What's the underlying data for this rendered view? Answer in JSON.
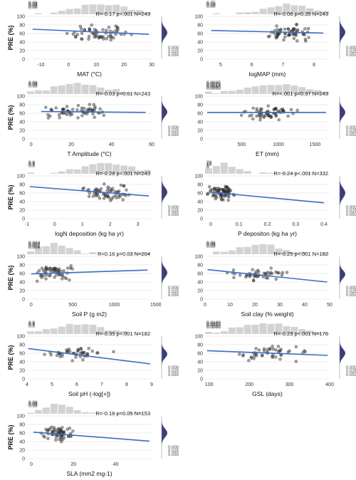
{
  "chart_data": [
    {
      "type": "scatter",
      "xlabel": "MAT (°C)",
      "ylabel": "PRE (%)",
      "xlim": [
        -15,
        30
      ],
      "ylim": [
        0,
        100
      ],
      "xticks": [
        -10,
        0,
        10,
        20,
        30
      ],
      "yticks": [
        0,
        20,
        40,
        60,
        80,
        100
      ],
      "stats": "R=-0.17  p<.001  N=243",
      "fit": {
        "x": [
          -13,
          29
        ],
        "y": [
          70,
          58
        ]
      },
      "hist_x_ticks": [
        "0.08",
        "0.06",
        "0.04",
        "0.02",
        "0.00"
      ],
      "hist_y_ticks": [
        "0.000",
        "0.025",
        "0.050"
      ],
      "points": {
        "x_center": 12,
        "x_spread": 9,
        "y_center": 62,
        "y_spread": 14,
        "n": 60
      }
    },
    {
      "type": "scatter",
      "xlabel": "logMAP (mm)",
      "ylabel": "",
      "xlim": [
        4.5,
        8.5
      ],
      "ylim": [
        0,
        100
      ],
      "xticks": [
        5,
        6,
        7,
        8
      ],
      "yticks": [
        0,
        20,
        40,
        60,
        80,
        100
      ],
      "stats": "R=-0.06  p=0.35  N=243",
      "fit": {
        "x": [
          4.7,
          8.3
        ],
        "y": [
          67,
          61
        ]
      },
      "hist_x_ticks": [
        "0.75",
        "0.50",
        "0.25",
        "0.00"
      ],
      "hist_y_ticks": [
        "0.000",
        "0.025",
        "0.050"
      ],
      "points": {
        "x_center": 7.2,
        "x_spread": 0.6,
        "y_center": 63,
        "y_spread": 14,
        "n": 60
      }
    },
    {
      "type": "scatter",
      "xlabel": "T Amplitude (°C)",
      "ylabel": "PRE (%)",
      "xlim": [
        -2,
        60
      ],
      "ylim": [
        0,
        100
      ],
      "xticks": [
        0,
        20,
        40,
        60
      ],
      "yticks": [
        0,
        20,
        40,
        60,
        80,
        100
      ],
      "stats": "R=-0.03  p=0.61  N=243",
      "fit": {
        "x": [
          5,
          57
        ],
        "y": [
          64,
          62
        ]
      },
      "hist_x_ticks": [
        "0.06",
        "0.04",
        "0.02",
        "0.00"
      ],
      "hist_y_ticks": [
        "0.000",
        "0.025",
        "0.050"
      ],
      "points": {
        "x_center": 24,
        "x_spread": 12,
        "y_center": 63,
        "y_spread": 13,
        "n": 60
      }
    },
    {
      "type": "scatter",
      "xlabel": "ET (mm)",
      "ylabel": "",
      "xlim": [
        0,
        1700
      ],
      "ylim": [
        0,
        100
      ],
      "xticks": [
        500,
        1000,
        1500
      ],
      "yticks": [
        0,
        20,
        40,
        60,
        80,
        100
      ],
      "stats": "R=<.001  p=0.97  N=243",
      "fit": {
        "x": [
          30,
          1650
        ],
        "y": [
          62,
          62
        ]
      },
      "hist_x_ticks": [
        "0.0025",
        "0.0020",
        "0.0015",
        "0.0010",
        "0.0005",
        "0.0000"
      ],
      "hist_y_ticks": [
        "0.000",
        "0.025",
        "0.050"
      ],
      "points": {
        "x_center": 900,
        "x_spread": 350,
        "y_center": 62,
        "y_spread": 13,
        "n": 60
      }
    },
    {
      "type": "scatter",
      "xlabel": "logN deposition (kg ha yr)",
      "ylabel": "PRE (%)",
      "xlim": [
        -1,
        3.5
      ],
      "ylim": [
        0,
        100
      ],
      "xticks": [
        -1,
        0,
        1,
        2,
        3
      ],
      "yticks": [
        0,
        20,
        40,
        60,
        80,
        100
      ],
      "stats": "R=-0.28  p<.001  N=243",
      "fit": {
        "x": [
          -0.9,
          3.4
        ],
        "y": [
          75,
          53
        ]
      },
      "hist_x_ticks": [
        "0.6",
        "0.4",
        "0.2",
        "0.0"
      ],
      "hist_y_ticks": [
        "0.000",
        "0.025",
        "0.050"
      ],
      "points": {
        "x_center": 1.9,
        "x_spread": 0.8,
        "y_center": 62,
        "y_spread": 14,
        "n": 60
      }
    },
    {
      "type": "scatter",
      "xlabel": "P depositon (kg ha yr)",
      "ylabel": "",
      "xlim": [
        -0.02,
        0.42
      ],
      "ylim": [
        0,
        100
      ],
      "xticks": [
        0.0,
        0.1,
        0.2,
        0.3,
        0.4
      ],
      "yticks": [
        0,
        20,
        40,
        60,
        80,
        100
      ],
      "stats": "R=-0.24  p<.001  N=332",
      "fit": {
        "x": [
          0.0,
          0.4
        ],
        "y": [
          62,
          37
        ]
      },
      "hist_x_ticks": [
        "20",
        "15",
        "10",
        "5",
        "0"
      ],
      "hist_y_ticks": [
        "0.000",
        "0.025",
        "0.050"
      ],
      "points": {
        "x_center": 0.04,
        "x_spread": 0.04,
        "y_center": 60,
        "y_spread": 15,
        "n": 70
      }
    },
    {
      "type": "scatter",
      "xlabel": "Soil P (g m2)",
      "ylabel": "PRE (%)",
      "xlim": [
        -50,
        1450
      ],
      "ylim": [
        0,
        100
      ],
      "xticks": [
        0,
        500,
        1000,
        1500
      ],
      "yticks": [
        0,
        20,
        40,
        60,
        80,
        100
      ],
      "stats": "R=0.16  p=0.03  N=204",
      "fit": {
        "x": [
          0,
          1400
        ],
        "y": [
          59,
          68
        ]
      },
      "hist_x_ticks": [
        "0.004",
        "0.003",
        "0.002",
        "0.001",
        "0.000"
      ],
      "hist_y_ticks": [
        "0.000",
        "0.025",
        "0.050"
      ],
      "points": {
        "x_center": 280,
        "x_spread": 180,
        "y_center": 62,
        "y_spread": 14,
        "n": 55
      }
    },
    {
      "type": "scatter",
      "xlabel": "Soil clay (% weight)",
      "ylabel": "",
      "xlim": [
        0,
        50
      ],
      "ylim": [
        0,
        100
      ],
      "xticks": [
        0,
        10,
        20,
        30,
        40,
        50
      ],
      "yticks": [
        0,
        20,
        40,
        60,
        80,
        100
      ],
      "stats": "R=-0.25  p<.001  N=182",
      "fit": {
        "x": [
          1,
          49
        ],
        "y": [
          69,
          40
        ]
      },
      "hist_x_ticks": [
        "0.06",
        "0.04",
        "0.02",
        "0.00"
      ],
      "hist_y_ticks": [
        "0.000",
        "0.025",
        "0.050"
      ],
      "points": {
        "x_center": 22,
        "x_spread": 8,
        "y_center": 58,
        "y_spread": 12,
        "n": 45
      }
    },
    {
      "type": "scatter",
      "xlabel": "Soil pH (-log[+])",
      "ylabel": "PRE (%)",
      "xlim": [
        4,
        9
      ],
      "ylim": [
        0,
        100
      ],
      "xticks": [
        4,
        5,
        6,
        7,
        8,
        9
      ],
      "yticks": [
        0,
        20,
        40,
        60,
        80,
        100
      ],
      "stats": "R=-0.35  p<.001  N=182",
      "fit": {
        "x": [
          4.05,
          8.95
        ],
        "y": [
          71,
          35
        ]
      },
      "hist_x_ticks": [
        "0.6",
        "0.4",
        "0.2",
        "0.0"
      ],
      "hist_y_ticks": [
        "0.000",
        "0.025",
        "0.050"
      ],
      "points": {
        "x_center": 6.0,
        "x_spread": 0.9,
        "y_center": 58,
        "y_spread": 12,
        "n": 45
      }
    },
    {
      "type": "scatter",
      "xlabel": "GSL (days)",
      "ylabel": "",
      "xlim": [
        90,
        400
      ],
      "ylim": [
        0,
        100
      ],
      "xticks": [
        100,
        200,
        300,
        400
      ],
      "yticks": [
        0,
        20,
        40,
        60,
        80,
        100
      ],
      "stats": "R=-0.29  p<.001  N=176",
      "fit": {
        "x": [
          95,
          395
        ],
        "y": [
          66,
          55
        ]
      },
      "hist_x_ticks": [
        "0.0100",
        "0.0075",
        "0.0050",
        "0.0025",
        "0.0000"
      ],
      "hist_y_ticks": [
        "0.000",
        "0.025",
        "0.050"
      ],
      "points": {
        "x_center": 250,
        "x_spread": 70,
        "y_center": 60,
        "y_spread": 13,
        "n": 45
      }
    },
    {
      "type": "scatter",
      "xlabel": "SLA (mm2 mg-1)",
      "ylabel": "PRE (%)",
      "xlim": [
        -2,
        57
      ],
      "ylim": [
        0,
        100
      ],
      "xticks": [
        0,
        20,
        40
      ],
      "yticks": [
        0,
        20,
        40,
        60,
        80,
        100
      ],
      "stats": "R=-0.16  p=0.05  N=153",
      "fit": {
        "x": [
          1,
          56
        ],
        "y": [
          62,
          41
        ]
      },
      "hist_x_ticks": [
        "0.06",
        "0.04",
        "0.02",
        "0.00"
      ],
      "hist_y_ticks": [
        "0.000",
        "0.025",
        "0.050"
      ],
      "points": {
        "x_center": 13,
        "x_spread": 6,
        "y_center": 60,
        "y_spread": 13,
        "n": 60
      }
    }
  ],
  "colors": {
    "points": "#333333",
    "fit": "#3a6fc4",
    "grid": "#d9d9d9",
    "hist_top": "#d3d3d3",
    "hist_side": "#3a3f7a"
  }
}
